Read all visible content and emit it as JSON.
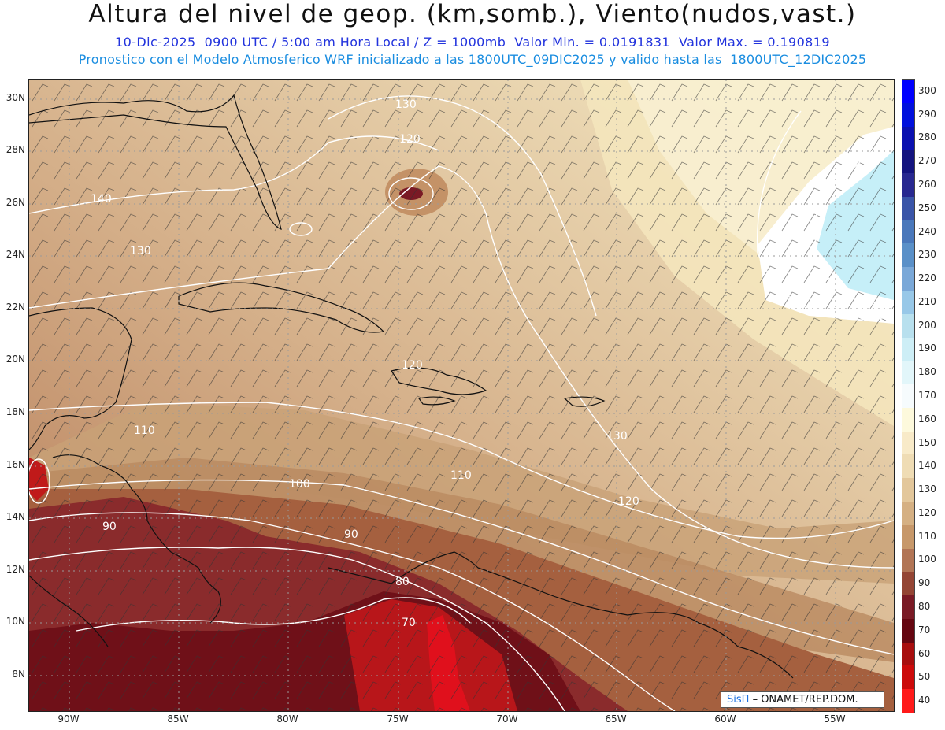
{
  "title": "Altura del nivel de geop. (km,somb.), Viento(nudos,vast.)",
  "subtitle1": "10-Dic-2025  0900 UTC / 5:00 am Hora Local / Z = 1000mb  Valor Min. = 0.0191831  Valor Max. = 0.190819",
  "subtitle2": "Pronostico con el Modelo Atmosferico WRF inicializado a las 1800UTC_09DIC2025 y valido hasta las  1800UTC_12DIC2025",
  "latitude_labels": [
    "30N",
    "28N",
    "26N",
    "24N",
    "22N",
    "20N",
    "18N",
    "16N",
    "14N",
    "12N",
    "10N",
    "8N"
  ],
  "longitude_labels": [
    "90W",
    "85W",
    "80W",
    "75W",
    "70W",
    "65W",
    "60W",
    "55W"
  ],
  "contour_labels": [
    "130",
    "120",
    "140",
    "130",
    "120",
    "110",
    "100",
    "110",
    "130",
    "120",
    "90",
    "90",
    "80",
    "70"
  ],
  "colorbar_labels": [
    "300",
    "290",
    "280",
    "270",
    "260",
    "250",
    "240",
    "230",
    "220",
    "210",
    "200",
    "190",
    "180",
    "170",
    "160",
    "150",
    "140",
    "130",
    "120",
    "110",
    "100",
    "90",
    "80",
    "70",
    "60",
    "50",
    "40"
  ],
  "colorbar_colors": [
    "#0000ff",
    "#0010dd",
    "#0a10b0",
    "#14147f",
    "#282890",
    "#3a55a8",
    "#4a78bb",
    "#5a90c8",
    "#7aa8d8",
    "#98c8e8",
    "#b8e0ee",
    "#cdeef6",
    "#e2f6fa",
    "#f6fbfd",
    "#fdf9dc",
    "#f8eac8",
    "#efdcb4",
    "#e3c79b",
    "#d5b083",
    "#c7986a",
    "#b27555",
    "#944534",
    "#7a1a25",
    "#650610",
    "#a80e0e",
    "#cc0a0a",
    "#ff1a1a"
  ],
  "logo": {
    "brand": "SisΠ",
    "org": "– ONAMET/REP.DOM."
  }
}
